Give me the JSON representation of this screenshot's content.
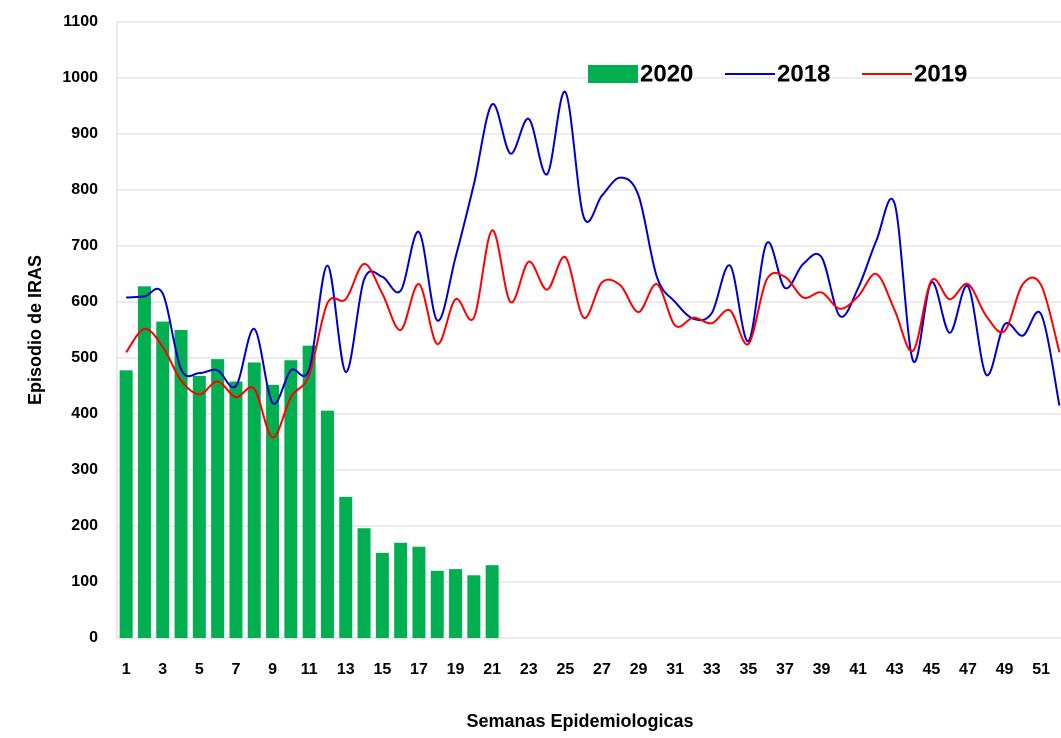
{
  "chart_data": {
    "type": "combo",
    "y_label": "Episodio de IRAS",
    "x_label": "Semanas Epidemiologicas",
    "categories": [
      "1",
      null,
      "3",
      null,
      "5",
      null,
      "7",
      null,
      "9",
      null,
      "11",
      null,
      "13",
      null,
      "15",
      null,
      "17",
      null,
      "19",
      null,
      "21",
      null,
      "23",
      null,
      "25",
      null,
      "27",
      null,
      "29",
      null,
      "31",
      null,
      "33",
      null,
      "35",
      null,
      "37",
      null,
      "39",
      null,
      "41",
      null,
      "43",
      null,
      "45",
      null,
      "47",
      null,
      "49",
      null,
      "51",
      null
    ],
    "series": [
      {
        "name": "2020",
        "type": "bar",
        "color": "#00b050",
        "values": [
          478,
          628,
          565,
          550,
          468,
          498,
          458,
          492,
          452,
          496,
          522,
          406,
          252,
          196,
          152,
          170,
          163,
          120,
          123,
          112,
          130,
          null,
          null,
          null,
          null,
          null,
          null,
          null,
          null,
          null,
          null,
          null,
          null,
          null,
          null,
          null,
          null,
          null,
          null,
          null,
          null,
          null,
          null,
          null,
          null,
          null,
          null,
          null,
          null,
          null,
          null,
          null
        ]
      },
      {
        "name": "2018",
        "type": "line",
        "color": "#0000cc",
        "values": [
          608,
          610,
          615,
          480,
          473,
          478,
          450,
          552,
          420,
          478,
          480,
          665,
          475,
          640,
          645,
          620,
          725,
          567,
          680,
          810,
          953,
          865,
          927,
          828,
          975,
          752,
          790,
          822,
          790,
          645,
          600,
          570,
          580,
          665,
          530,
          705,
          625,
          668,
          680,
          575,
          625,
          710,
          775,
          495,
          635,
          545,
          628,
          470,
          560,
          540,
          578,
          415
        ]
      },
      {
        "name": "2019",
        "type": "line",
        "color": "#ff0000",
        "values": [
          510,
          552,
          520,
          460,
          435,
          458,
          430,
          445,
          358,
          430,
          470,
          598,
          605,
          668,
          615,
          550,
          632,
          525,
          605,
          572,
          728,
          600,
          672,
          622,
          680,
          572,
          635,
          630,
          582,
          632,
          558,
          572,
          562,
          585,
          525,
          640,
          645,
          608,
          617,
          588,
          610,
          650,
          585,
          513,
          638,
          605,
          632,
          575,
          548,
          632,
          630,
          510
        ]
      }
    ],
    "ylim": [
      0,
      1100
    ],
    "yticks": [
      0,
      100,
      200,
      300,
      400,
      500,
      600,
      700,
      800,
      900,
      1000,
      1100
    ],
    "grid": true,
    "legend": "top"
  }
}
